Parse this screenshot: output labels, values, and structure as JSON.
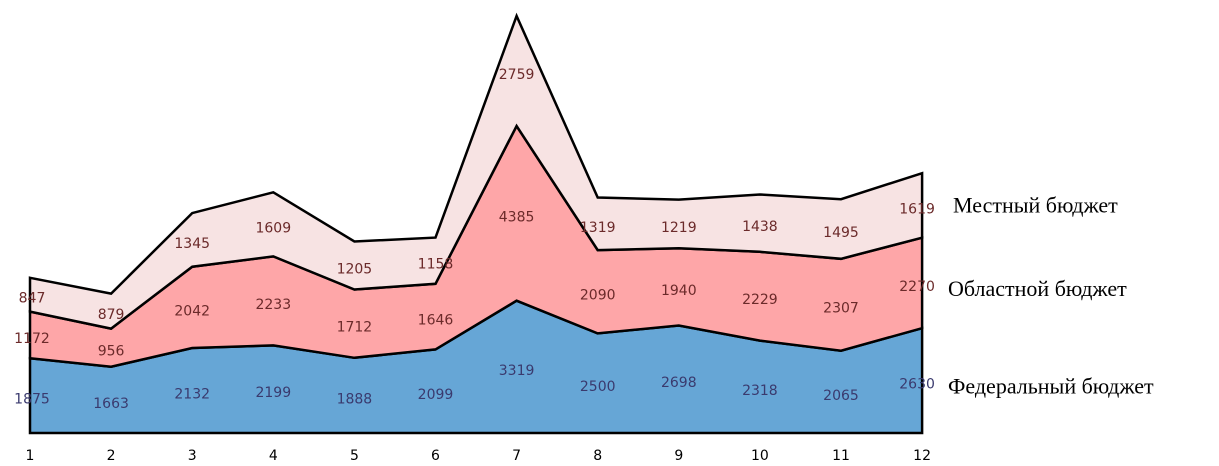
{
  "chart_data": {
    "type": "area",
    "stacked": true,
    "categories": [
      "1",
      "2",
      "3",
      "4",
      "5",
      "6",
      "7",
      "8",
      "9",
      "10",
      "11",
      "12"
    ],
    "series": [
      {
        "name": "Федеральный бюджет",
        "color": "#66A6D6",
        "label_color": "#3A3A6E",
        "values": [
          1875,
          1663,
          2132,
          2199,
          1888,
          2099,
          3319,
          2500,
          2698,
          2318,
          2065,
          2630
        ]
      },
      {
        "name": "Областной бюджет",
        "color": "#FEA6A8",
        "label_color": "#6B2A2A",
        "values": [
          1172,
          956,
          2042,
          2233,
          1712,
          1646,
          4385,
          2090,
          1940,
          2229,
          2307,
          2270
        ]
      },
      {
        "name": "Местный бюджет",
        "color": "#F7E3E3",
        "label_color": "#6B2A2A",
        "values": [
          847,
          879,
          1345,
          1609,
          1205,
          1158,
          2759,
          1319,
          1219,
          1438,
          1495,
          1619
        ]
      }
    ],
    "data_labels": true,
    "grid": false,
    "legend": "right"
  }
}
